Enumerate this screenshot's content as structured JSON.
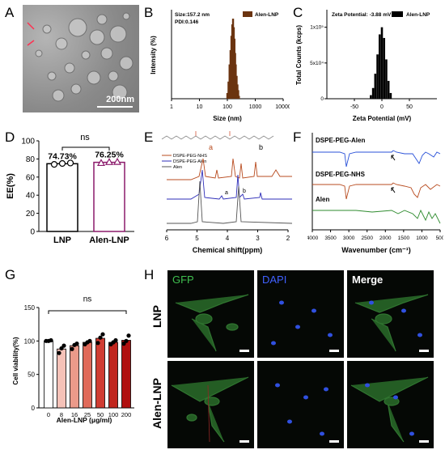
{
  "panels": {
    "A": "A",
    "B": "B",
    "C": "C",
    "D": "D",
    "E": "E",
    "F": "F",
    "G": "G",
    "H": "H"
  },
  "panel_a": {
    "scale_label": "200nm"
  },
  "panel_b": {
    "annotation_size": "Size:157.2 nm",
    "annotation_pdi": "PDI:0.146"
  },
  "panel_c": {
    "annotation": "Zeta Potential: -3.88 mV"
  },
  "panel_e": {
    "structure_label_a": "a",
    "structure_label_b": "b",
    "peak_label_a": "a",
    "peak_label_b": "b"
  },
  "panel_h": {
    "col_gfp": "GFP",
    "col_dapi": "DAPI",
    "col_merge": "Merge",
    "row_lnp": "LNP",
    "row_alen": "Alen-LNP",
    "colors": {
      "gfp": "#3fbf4f",
      "dapi": "#4060ff",
      "merge": "#ffffff"
    }
  },
  "chart_data": [
    {
      "id": "B",
      "type": "bar",
      "xlabel": "Size (nm)",
      "ylabel": "Intensity (%)",
      "xscale": "log",
      "xlim": [
        1,
        10000
      ],
      "xticks": [
        "1",
        "10",
        "100",
        "1000",
        "10000"
      ],
      "legend": [
        "Alen-LNP"
      ],
      "legend_position": "top-right",
      "color": "#6b3410",
      "series": [
        {
          "name": "Alen-LNP",
          "x": [
            100,
            110,
            120,
            130,
            140,
            150,
            160,
            170,
            180,
            190,
            200,
            215,
            230,
            245,
            260
          ],
          "values": [
            2,
            6,
            12,
            17,
            22,
            26,
            28,
            25,
            21,
            16,
            12,
            8,
            5,
            3,
            1
          ]
        }
      ],
      "ylim": [
        0,
        30
      ]
    },
    {
      "id": "C",
      "type": "bar",
      "xlabel": "Zeta Potential (mV)",
      "ylabel": "Total Counts (kcps)",
      "xlim": [
        -100,
        100
      ],
      "xticks": [
        "-50",
        "0",
        "50"
      ],
      "yticks": [
        "0",
        "5x10⁴",
        "1x10⁵"
      ],
      "ylim": [
        0,
        120000
      ],
      "legend": [
        "Alen-LNP"
      ],
      "legend_position": "top-right",
      "color": "#000000",
      "series": [
        {
          "name": "Alen-LNP",
          "x": [
            -20,
            -16,
            -12,
            -8,
            -4,
            0,
            4,
            8,
            12,
            16
          ],
          "values": [
            5000,
            15000,
            35000,
            62000,
            90000,
            100000,
            85000,
            55000,
            25000,
            8000
          ]
        }
      ]
    },
    {
      "id": "D",
      "type": "bar",
      "categories": [
        "LNP",
        "Alen-LNP"
      ],
      "values": [
        74.73,
        76.25
      ],
      "data_labels": [
        "74.73%",
        "76.25%"
      ],
      "points": [
        [
          74,
          75,
          75.5
        ],
        [
          75.5,
          76.5,
          76.7
        ]
      ],
      "significance": "ns",
      "ylabel": "EE(%)",
      "ylim": [
        0,
        100
      ],
      "yticks": [
        "0",
        "20",
        "40",
        "60",
        "80",
        "100"
      ],
      "colors": [
        "#000000",
        "#8b1a6b"
      ]
    },
    {
      "id": "E",
      "type": "line",
      "xlabel": "Chemical shift(ppm)",
      "xlim": [
        6,
        2
      ],
      "xticks": [
        "6",
        "5",
        "4",
        "3",
        "2"
      ],
      "legend": [
        "DSPE-PEG-NHS",
        "DSPE-PEG-Alen",
        "Alen"
      ],
      "legend_position": "top-left",
      "colors": [
        "#b84b1f",
        "#2d2db8",
        "#555555"
      ]
    },
    {
      "id": "F",
      "type": "line",
      "xlabel": "Wavenumber (cm⁻¹)",
      "xlim": [
        4000,
        500
      ],
      "xticks": [
        "4000",
        "3500",
        "3000",
        "2500",
        "2000",
        "1500",
        "1000",
        "500"
      ],
      "series_labels": [
        "DSPE-PEG-Alen",
        "DSPE-PEG-NHS",
        "Alen"
      ],
      "colors": [
        "#2850d8",
        "#b84b1f",
        "#2e8b2e"
      ]
    },
    {
      "id": "G",
      "type": "bar",
      "categories": [
        "0",
        "8",
        "16",
        "25",
        "50",
        "100",
        "200"
      ],
      "values": [
        100,
        88,
        93,
        98,
        104,
        98,
        101
      ],
      "points": [
        [
          100,
          100,
          101
        ],
        [
          82,
          89,
          93
        ],
        [
          88,
          94,
          96
        ],
        [
          95,
          98,
          100
        ],
        [
          97,
          105,
          110
        ],
        [
          95,
          98,
          101
        ],
        [
          96,
          100,
          108
        ]
      ],
      "significance": "ns",
      "xlabel": "Alen-LNP (μg/ml)",
      "ylabel": "Cell viability(%)",
      "ylim": [
        0,
        150
      ],
      "yticks": [
        "0",
        "50",
        "100",
        "150"
      ],
      "colors": [
        "#ffffff",
        "#f5c2b8",
        "#eb9a8a",
        "#e06a5a",
        "#d03c32",
        "#c0261e",
        "#b01010"
      ]
    }
  ]
}
